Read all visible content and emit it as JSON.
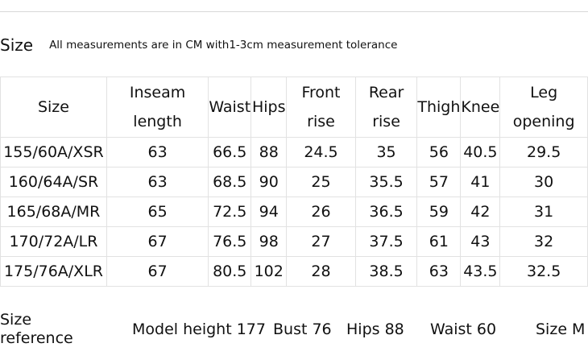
{
  "header": {
    "title": "Size",
    "note": "All measurements are in CM with1-3cm measurement tolerance"
  },
  "table": {
    "columns": [
      "Size",
      "Inseam length",
      "Waist",
      "Hips",
      "Front rise",
      "Rear rise",
      "Thigh",
      "Knee",
      "Leg opening"
    ],
    "column_lines": [
      [
        "Size"
      ],
      [
        "Inseam",
        "length"
      ],
      [
        "Waist"
      ],
      [
        "Hips"
      ],
      [
        "Front",
        "rise"
      ],
      [
        "Rear",
        "rise"
      ],
      [
        "Thigh"
      ],
      [
        "Knee"
      ],
      [
        "Leg",
        "opening"
      ]
    ],
    "rows": [
      [
        "155/60A/XSR",
        "63",
        "66.5",
        "88",
        "24.5",
        "35",
        "56",
        "40.5",
        "29.5"
      ],
      [
        "160/64A/SR",
        "63",
        "68.5",
        "90",
        "25",
        "35.5",
        "57",
        "41",
        "30"
      ],
      [
        "165/68A/MR",
        "65",
        "72.5",
        "94",
        "26",
        "36.5",
        "59",
        "42",
        "31"
      ],
      [
        "170/72A/LR",
        "67",
        "76.5",
        "98",
        "27",
        "37.5",
        "61",
        "43",
        "32"
      ],
      [
        "175/76A/XLR",
        "67",
        "80.5",
        "102",
        "28",
        "38.5",
        "63",
        "43.5",
        "32.5"
      ]
    ]
  },
  "reference": {
    "label_line1": "Size",
    "label_line2": "reference",
    "model_height": "Model height 177",
    "bust": "Bust 76",
    "hips": "Hips 88",
    "waist": "Waist 60",
    "size": "Size M"
  }
}
